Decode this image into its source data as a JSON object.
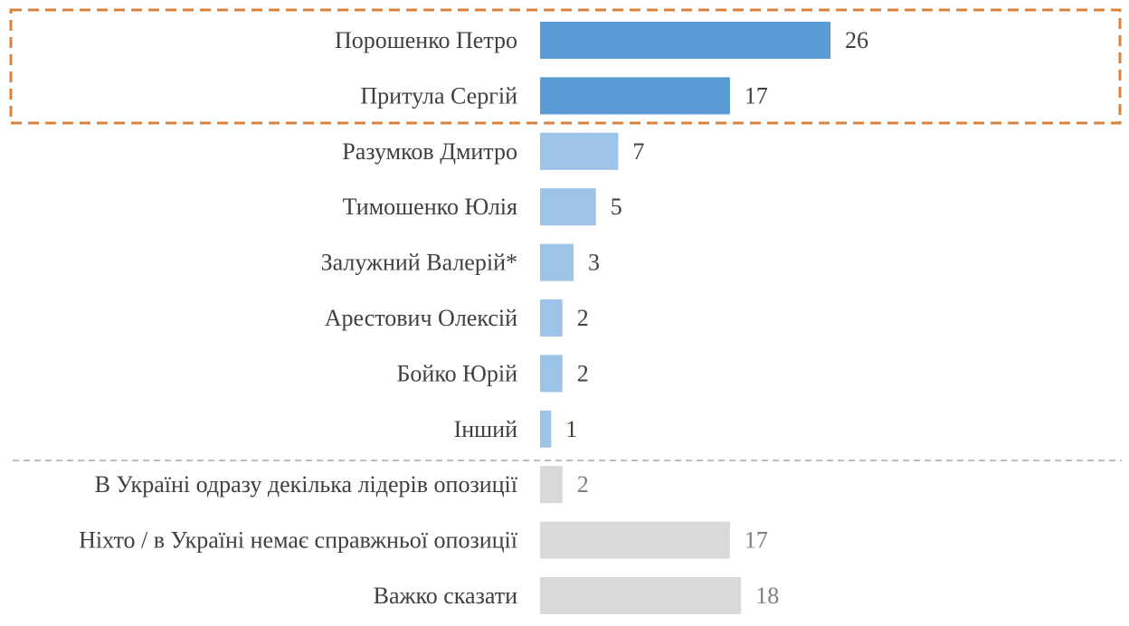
{
  "chart_data": {
    "type": "bar",
    "orientation": "horizontal",
    "title": "",
    "xlabel": "",
    "ylabel": "",
    "xlim": [
      0,
      26
    ],
    "grid": false,
    "categories": [
      "Порошенко Петро",
      "Притула Сергій",
      "Разумков Дмитро",
      "Тимошенко Юлія",
      "Залужний Валерій*",
      "Арестович Олексій",
      "Бойко Юрій",
      "Інший",
      "В Україні одразу декілька лідерів опозиції",
      "Ніхто / в Україні немає справжньої опозиції",
      "Важко сказати"
    ],
    "values": [
      26,
      17,
      7,
      5,
      3,
      2,
      2,
      1,
      2,
      17,
      18
    ],
    "value_labels": [
      "26",
      "17",
      "7",
      "5",
      "3",
      "2",
      "2",
      "1",
      "2",
      "17",
      "18"
    ],
    "groups": [
      "highlight",
      "highlight",
      "normal",
      "normal",
      "normal",
      "normal",
      "normal",
      "normal",
      "other",
      "other",
      "other"
    ],
    "annotations": [
      "dashed orange box around the first two bars",
      "dashed gray separator line between 'Інший' and the non-candidate answers"
    ]
  },
  "colors": {
    "highlight_bar": "#5b9bd5",
    "normal_bar": "#9dc3e6",
    "other_bar": "#d9d9d9",
    "highlight_box": "#d9823b",
    "separator": "#bfbfbf",
    "category_text": "#404040",
    "value_text": "#404040",
    "other_value_text": "#7f7f7f"
  }
}
